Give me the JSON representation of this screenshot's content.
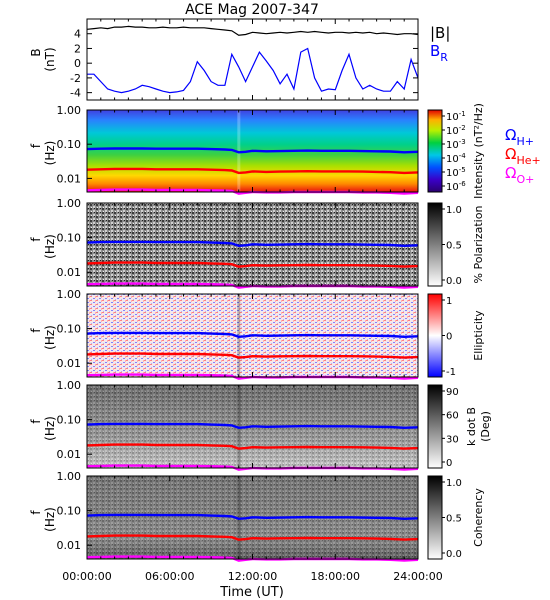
{
  "figure": {
    "title": "ACE Mag 2007-347",
    "xlabel": "Time (UT)"
  },
  "chart_data": [
    {
      "type": "line",
      "panel": "B",
      "ylabel": [
        "B",
        "(nT)"
      ],
      "ylim": [
        -5,
        6
      ],
      "yticks": [
        "4",
        "2",
        "0",
        "-2",
        "-4"
      ],
      "ytick_values": [
        4,
        2,
        0,
        -2,
        -4
      ],
      "xlim": [
        0,
        24
      ],
      "x_hours": [
        0,
        0.5,
        1,
        1.5,
        2,
        2.5,
        3,
        3.5,
        4,
        4.5,
        5,
        5.5,
        6,
        6.5,
        7,
        7.5,
        8,
        8.5,
        9,
        9.5,
        10,
        10.5,
        11,
        11.5,
        12,
        12.5,
        13,
        13.5,
        14,
        14.5,
        15,
        15.5,
        16,
        16.5,
        17,
        17.5,
        18,
        18.5,
        19,
        19.5,
        20,
        20.5,
        21,
        21.5,
        22,
        22.5,
        23,
        23.5,
        24
      ],
      "series": [
        {
          "name": "|B|",
          "color": "#000000",
          "values": [
            4.6,
            4.7,
            4.8,
            4.7,
            4.9,
            4.9,
            5.0,
            4.9,
            4.9,
            4.8,
            4.8,
            4.9,
            4.8,
            4.8,
            4.9,
            4.8,
            4.8,
            4.8,
            4.7,
            4.6,
            4.5,
            4.4,
            3.8,
            3.9,
            4.2,
            4.1,
            4.0,
            4.1,
            4.2,
            4.1,
            4.2,
            4.3,
            4.2,
            4.3,
            4.2,
            4.1,
            4.2,
            4.2,
            4.1,
            4.2,
            4.1,
            4.2,
            4.0,
            4.1,
            4.0,
            3.9,
            4.0,
            4.0,
            3.9
          ]
        },
        {
          "name": "B_R",
          "color": "#0000ff",
          "values": [
            -1.5,
            -1.5,
            -2.5,
            -3.5,
            -3.8,
            -4.0,
            -3.8,
            -3.5,
            -3.0,
            -3.2,
            -3.5,
            -3.8,
            -4.0,
            -3.9,
            -3.7,
            -2.5,
            0.2,
            -1.0,
            -2.5,
            -3.0,
            -3.0,
            1.2,
            -0.5,
            -2.5,
            -0.5,
            1.5,
            0.3,
            -1.0,
            -2.8,
            -1.5,
            -3.5,
            1.5,
            2.0,
            -2.0,
            -3.8,
            -3.5,
            -3.6,
            -1.0,
            1.2,
            -2.0,
            -3.5,
            -3.0,
            -3.5,
            -3.8,
            -3.8,
            -2.5,
            -3.5,
            0.5,
            -2.0
          ]
        }
      ],
      "legend": [
        {
          "text": "|B|",
          "sub": "",
          "color": "#000000"
        },
        {
          "text": "B",
          "sub": "R",
          "color": "#0000ff"
        }
      ]
    },
    {
      "type": "heatmap",
      "panel": "Intensity",
      "ylabel": [
        "f",
        "(Hz)"
      ],
      "yscale": "log",
      "ylim": [
        0.004,
        1.0
      ],
      "yticks": [
        "1.00",
        "0.10",
        "0.01"
      ],
      "ytick_values": [
        1.0,
        0.1,
        0.01
      ],
      "colorbar": {
        "label": "Intensity (nT²/Hz)",
        "scale": "log",
        "colormap": "rainbow",
        "ticks": [
          "10",
          "10",
          "10",
          "10",
          "10",
          "10"
        ],
        "tick_exponents": [
          "-1",
          "-2",
          "-3",
          "-4",
          "-5",
          "-6"
        ]
      },
      "overlay_legend": [
        {
          "text": "Ω",
          "sub": "H+",
          "color": "#0000ff"
        },
        {
          "text": "Ω",
          "sub": "He+",
          "color": "#ff0000"
        },
        {
          "text": "Ω",
          "sub": "O+",
          "color": "#ff00ff"
        }
      ]
    },
    {
      "type": "heatmap",
      "panel": "% Polarization",
      "ylabel": [
        "f",
        "(Hz)"
      ],
      "yscale": "log",
      "yticks": [
        "1.00",
        "0.10",
        "0.01"
      ],
      "ytick_values": [
        1.0,
        0.1,
        0.01
      ],
      "colorbar": {
        "label": "% Polarization",
        "colormap": "gray",
        "ticks": [
          "1.0",
          "0.5",
          "0.0"
        ],
        "tick_values": [
          1.0,
          0.5,
          0.0
        ]
      }
    },
    {
      "type": "heatmap",
      "panel": "Ellipticity",
      "ylabel": [
        "f",
        "(Hz)"
      ],
      "yscale": "log",
      "yticks": [
        "1.00",
        "0.10",
        "0.01"
      ],
      "ytick_values": [
        1.0,
        0.1,
        0.01
      ],
      "colorbar": {
        "label": "Ellipticity",
        "colormap": "blue-white-red",
        "ticks": [
          "1",
          "0",
          "-1"
        ],
        "tick_values": [
          1,
          0,
          -1
        ]
      }
    },
    {
      "type": "heatmap",
      "panel": "k dot B",
      "ylabel": [
        "f",
        "(Hz)"
      ],
      "yscale": "log",
      "yticks": [
        "1.00",
        "0.10",
        "0.01"
      ],
      "ytick_values": [
        1.0,
        0.1,
        0.01
      ],
      "colorbar": {
        "label": [
          "k dot B",
          "(Deg)"
        ],
        "colormap": "gray",
        "ticks": [
          "90",
          "60",
          "30",
          "0"
        ],
        "tick_values": [
          90,
          60,
          30,
          0
        ]
      }
    },
    {
      "type": "heatmap",
      "panel": "Coherency",
      "ylabel": [
        "f",
        "(Hz)"
      ],
      "yscale": "log",
      "yticks": [
        "1.00",
        "0.10",
        "0.01"
      ],
      "ytick_values": [
        1.0,
        0.1,
        0.01
      ],
      "colorbar": {
        "label": "Coherency",
        "colormap": "gray",
        "ticks": [
          "1.0",
          "0.5",
          "0.0"
        ],
        "tick_values": [
          1.0,
          0.5,
          0.0
        ]
      }
    }
  ],
  "gyrofrequency_lines": {
    "x_hours": [
      0,
      1,
      2,
      3,
      4,
      5,
      6,
      7,
      8,
      9,
      10,
      10.5,
      11,
      11.5,
      12,
      13,
      14,
      15,
      16,
      17,
      18,
      19,
      20,
      21,
      22,
      23,
      24
    ],
    "series": [
      {
        "name": "H+",
        "color": "#0000ff",
        "values_hz": [
          0.072,
          0.074,
          0.075,
          0.075,
          0.075,
          0.074,
          0.074,
          0.074,
          0.074,
          0.072,
          0.07,
          0.068,
          0.058,
          0.06,
          0.064,
          0.062,
          0.063,
          0.064,
          0.065,
          0.064,
          0.064,
          0.064,
          0.063,
          0.062,
          0.061,
          0.058,
          0.06
        ]
      },
      {
        "name": "He+",
        "color": "#ff0000",
        "values_hz": [
          0.018,
          0.0185,
          0.019,
          0.019,
          0.019,
          0.0185,
          0.0185,
          0.0185,
          0.0185,
          0.018,
          0.0175,
          0.017,
          0.0145,
          0.015,
          0.016,
          0.0155,
          0.0158,
          0.016,
          0.0162,
          0.016,
          0.016,
          0.016,
          0.0158,
          0.0155,
          0.0152,
          0.0145,
          0.015
        ]
      },
      {
        "name": "O+",
        "color": "#ff00ff",
        "values_hz": [
          0.0045,
          0.0046,
          0.0047,
          0.0047,
          0.0047,
          0.0046,
          0.0046,
          0.0046,
          0.0046,
          0.0045,
          0.0044,
          0.0043,
          0.0036,
          0.0038,
          0.004,
          0.0039,
          0.0039,
          0.004,
          0.004,
          0.004,
          0.004,
          0.004,
          0.0039,
          0.0039,
          0.0038,
          0.0036,
          0.0038
        ]
      }
    ]
  },
  "time_axis": {
    "xlim": [
      0,
      24
    ],
    "ticks": [
      "00:00:00",
      "06:00:00",
      "12:00:00",
      "18:00:00",
      "24:00:00"
    ],
    "tick_values": [
      0,
      6,
      12,
      18,
      24
    ]
  }
}
